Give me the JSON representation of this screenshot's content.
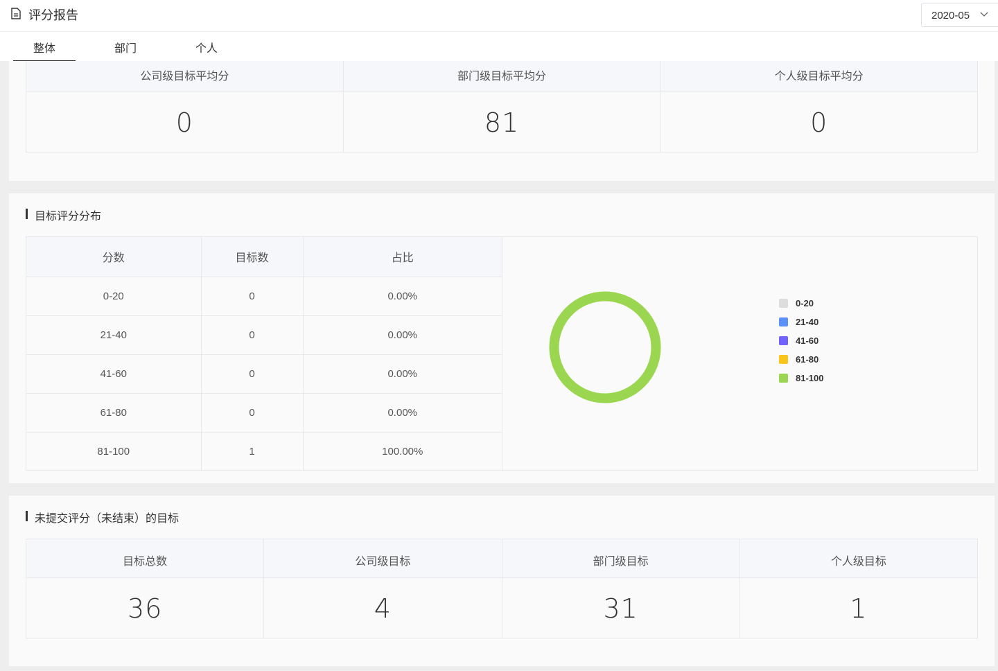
{
  "header": {
    "title": "评分报告",
    "month": "2020-05"
  },
  "tabs": [
    "整体",
    "部门",
    "个人"
  ],
  "averages": {
    "columns": [
      {
        "label": "公司级目标平均分",
        "value": "0"
      },
      {
        "label": "部门级目标平均分",
        "value": "81"
      },
      {
        "label": "个人级目标平均分",
        "value": "0"
      }
    ]
  },
  "distribution": {
    "title": "目标评分分布",
    "headers": [
      "分数",
      "目标数",
      "占比"
    ],
    "rows": [
      [
        "0-20",
        "0",
        "0.00%"
      ],
      [
        "21-40",
        "0",
        "0.00%"
      ],
      [
        "41-60",
        "0",
        "0.00%"
      ],
      [
        "61-80",
        "0",
        "0.00%"
      ],
      [
        "81-100",
        "1",
        "100.00%"
      ]
    ]
  },
  "chart_data": {
    "type": "pie",
    "categories": [
      "0-20",
      "21-40",
      "41-60",
      "61-80",
      "81-100"
    ],
    "values": [
      0,
      0,
      0,
      0,
      1
    ],
    "colors": [
      "#dddddd",
      "#5b8ff9",
      "#7262fd",
      "#fac41a",
      "#9bd650"
    ],
    "donut": true,
    "legend": "right"
  },
  "unsubmitted": {
    "title": "未提交评分（未结束）的目标",
    "columns": [
      {
        "label": "目标总数",
        "value": "36"
      },
      {
        "label": "公司级目标",
        "value": "4"
      },
      {
        "label": "部门级目标",
        "value": "31"
      },
      {
        "label": "个人级目标",
        "value": "1"
      }
    ]
  }
}
